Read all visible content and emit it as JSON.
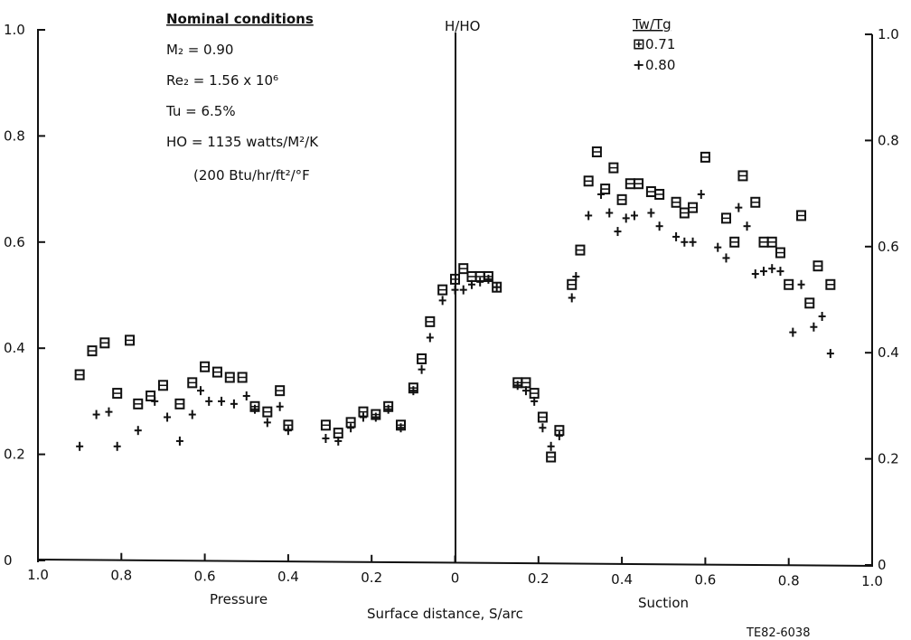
{
  "annotations": {
    "nominal_title": "Nominal conditions",
    "m2": "M₂ = 0.90",
    "re2": "Re₂ = 1.56 x 10⁶",
    "tu": "Tu = 6.5%",
    "ho": "HO = 1135 watts/M²/K",
    "ho_btu": "(200 Btu/hr/ft²/°F",
    "center_label": "H/HO",
    "pressure_label": "Pressure",
    "suction_label": "Suction",
    "figure_id": "TE82-6038"
  },
  "legend": {
    "title": "Tw/Tg",
    "items": [
      {
        "symbol": "⊞",
        "label": "0.71"
      },
      {
        "symbol": "+",
        "label": "0.80"
      }
    ]
  },
  "chart_data": {
    "type": "scatter",
    "title": "",
    "xlabel": "Surface distance, S/arc",
    "ylabel": "H/HO",
    "xlim": [
      -1.0,
      1.0
    ],
    "ylim": [
      0,
      1.0
    ],
    "x_ticks": [
      {
        "value": -1.0,
        "label": "1.0"
      },
      {
        "value": -0.8,
        "label": "0.8"
      },
      {
        "value": -0.6,
        "label": "0.6"
      },
      {
        "value": -0.4,
        "label": "0.4"
      },
      {
        "value": -0.2,
        "label": "0.2"
      },
      {
        "value": 0.0,
        "label": "0"
      },
      {
        "value": 0.2,
        "label": "0.2"
      },
      {
        "value": 0.4,
        "label": "0.4"
      },
      {
        "value": 0.6,
        "label": "0.6"
      },
      {
        "value": 0.8,
        "label": "0.8"
      },
      {
        "value": 1.0,
        "label": "1.0"
      }
    ],
    "y_ticks": [
      {
        "value": 0,
        "label": "0"
      },
      {
        "value": 0.2,
        "label": "0.2"
      },
      {
        "value": 0.4,
        "label": "0.4"
      },
      {
        "value": 0.6,
        "label": "0.6"
      },
      {
        "value": 0.8,
        "label": "0.8"
      },
      {
        "value": 1.0,
        "label": "1.0"
      }
    ],
    "series": [
      {
        "name": "0.71",
        "marker": "square",
        "x": [
          -0.9,
          -0.87,
          -0.84,
          -0.81,
          -0.78,
          -0.76,
          -0.73,
          -0.7,
          -0.66,
          -0.63,
          -0.6,
          -0.57,
          -0.54,
          -0.51,
          -0.48,
          -0.45,
          -0.42,
          -0.4,
          -0.31,
          -0.28,
          -0.25,
          -0.22,
          -0.19,
          -0.16,
          -0.13,
          -0.1,
          -0.08,
          -0.06,
          -0.03,
          0.0,
          0.02,
          0.04,
          0.06,
          0.08,
          0.1,
          0.15,
          0.17,
          0.19,
          0.21,
          0.23,
          0.25,
          0.28,
          0.3,
          0.32,
          0.34,
          0.36,
          0.38,
          0.4,
          0.42,
          0.44,
          0.47,
          0.49,
          0.53,
          0.55,
          0.57,
          0.6,
          0.65,
          0.67,
          0.69,
          0.72,
          0.74,
          0.76,
          0.78,
          0.8,
          0.83,
          0.85,
          0.87,
          0.9
        ],
        "y": [
          0.35,
          0.395,
          0.41,
          0.315,
          0.415,
          0.295,
          0.31,
          0.33,
          0.295,
          0.335,
          0.365,
          0.355,
          0.345,
          0.345,
          0.29,
          0.28,
          0.32,
          0.255,
          0.255,
          0.24,
          0.26,
          0.28,
          0.275,
          0.29,
          0.255,
          0.325,
          0.38,
          0.45,
          0.51,
          0.53,
          0.55,
          0.535,
          0.535,
          0.535,
          0.515,
          0.335,
          0.335,
          0.315,
          0.27,
          0.195,
          0.245,
          0.52,
          0.585,
          0.715,
          0.77,
          0.7,
          0.74,
          0.68,
          0.71,
          0.71,
          0.695,
          0.69,
          0.675,
          0.655,
          0.665,
          0.76,
          0.645,
          0.6,
          0.725,
          0.675,
          0.6,
          0.6,
          0.58,
          0.52,
          0.65,
          0.485,
          0.555,
          0.52
        ]
      },
      {
        "name": "0.80",
        "marker": "plus",
        "x": [
          -0.9,
          -0.86,
          -0.83,
          -0.81,
          -0.76,
          -0.72,
          -0.69,
          -0.66,
          -0.63,
          -0.61,
          -0.59,
          -0.56,
          -0.53,
          -0.5,
          -0.48,
          -0.45,
          -0.42,
          -0.4,
          -0.31,
          -0.28,
          -0.25,
          -0.22,
          -0.19,
          -0.16,
          -0.13,
          -0.1,
          -0.08,
          -0.06,
          -0.03,
          0.0,
          0.02,
          0.04,
          0.06,
          0.08,
          0.1,
          0.15,
          0.17,
          0.19,
          0.21,
          0.23,
          0.25,
          0.28,
          0.29,
          0.32,
          0.35,
          0.37,
          0.39,
          0.41,
          0.43,
          0.47,
          0.49,
          0.53,
          0.55,
          0.57,
          0.59,
          0.63,
          0.65,
          0.68,
          0.7,
          0.72,
          0.74,
          0.76,
          0.78,
          0.81,
          0.83,
          0.86,
          0.88,
          0.9
        ],
        "y": [
          0.215,
          0.275,
          0.28,
          0.215,
          0.245,
          0.3,
          0.27,
          0.225,
          0.275,
          0.32,
          0.3,
          0.3,
          0.295,
          0.31,
          0.285,
          0.26,
          0.29,
          0.245,
          0.23,
          0.225,
          0.25,
          0.27,
          0.27,
          0.285,
          0.25,
          0.32,
          0.36,
          0.42,
          0.49,
          0.51,
          0.51,
          0.52,
          0.525,
          0.53,
          0.515,
          0.33,
          0.32,
          0.3,
          0.25,
          0.215,
          0.235,
          0.495,
          0.535,
          0.65,
          0.69,
          0.655,
          0.62,
          0.645,
          0.65,
          0.655,
          0.63,
          0.61,
          0.6,
          0.6,
          0.69,
          0.59,
          0.57,
          0.665,
          0.63,
          0.54,
          0.545,
          0.55,
          0.545,
          0.43,
          0.52,
          0.44,
          0.46,
          0.39
        ]
      }
    ],
    "grid": false,
    "legend_position": "top-right"
  }
}
